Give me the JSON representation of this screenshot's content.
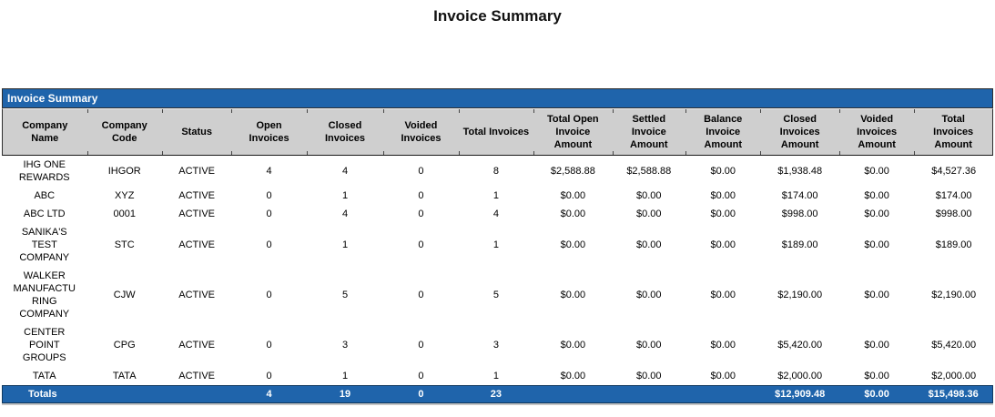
{
  "page": {
    "title": "Invoice Summary"
  },
  "report": {
    "section_title": "Invoice Summary",
    "columns": [
      "Company Name",
      "Company Code",
      "Status",
      "Open Invoices",
      "Closed Invoices",
      "Voided Invoices",
      "Total Invoices",
      "Total Open Invoice Amount",
      "Settled Invoice Amount",
      "Balance Invoice Amount",
      "Closed Invoices Amount",
      "Voided Invoices Amount",
      "Total Invoices Amount"
    ],
    "rows": [
      [
        "IHG ONE REWARDS",
        "IHGOR",
        "ACTIVE",
        "4",
        "4",
        "0",
        "8",
        "$2,588.88",
        "$2,588.88",
        "$0.00",
        "$1,938.48",
        "$0.00",
        "$4,527.36"
      ],
      [
        "ABC",
        "XYZ",
        "ACTIVE",
        "0",
        "1",
        "0",
        "1",
        "$0.00",
        "$0.00",
        "$0.00",
        "$174.00",
        "$0.00",
        "$174.00"
      ],
      [
        "ABC LTD",
        "0001",
        "ACTIVE",
        "0",
        "4",
        "0",
        "4",
        "$0.00",
        "$0.00",
        "$0.00",
        "$998.00",
        "$0.00",
        "$998.00"
      ],
      [
        "SANIKA'S TEST COMPANY",
        "STC",
        "ACTIVE",
        "0",
        "1",
        "0",
        "1",
        "$0.00",
        "$0.00",
        "$0.00",
        "$189.00",
        "$0.00",
        "$189.00"
      ],
      [
        "WALKER MANUFACTURING COMPANY",
        "CJW",
        "ACTIVE",
        "0",
        "5",
        "0",
        "5",
        "$0.00",
        "$0.00",
        "$0.00",
        "$2,190.00",
        "$0.00",
        "$2,190.00"
      ],
      [
        "CENTER POINT GROUPS",
        "CPG",
        "ACTIVE",
        "0",
        "3",
        "0",
        "3",
        "$0.00",
        "$0.00",
        "$0.00",
        "$5,420.00",
        "$0.00",
        "$5,420.00"
      ],
      [
        "TATA",
        "TATA",
        "ACTIVE",
        "0",
        "1",
        "0",
        "1",
        "$0.00",
        "$0.00",
        "$0.00",
        "$2,000.00",
        "$0.00",
        "$2,000.00"
      ]
    ],
    "totals_row": [
      "Totals",
      "",
      "",
      "4",
      "19",
      "0",
      "23",
      "",
      "",
      "",
      "$12,909.48",
      "$0.00",
      "$15,498.36"
    ],
    "colors": {
      "header_bar_blue": "#1F64AB",
      "column_header_gray": "#CFCFCF",
      "totals_bar_blue": "#1F64AB",
      "totals_text_white": "#FFFFFF"
    }
  }
}
